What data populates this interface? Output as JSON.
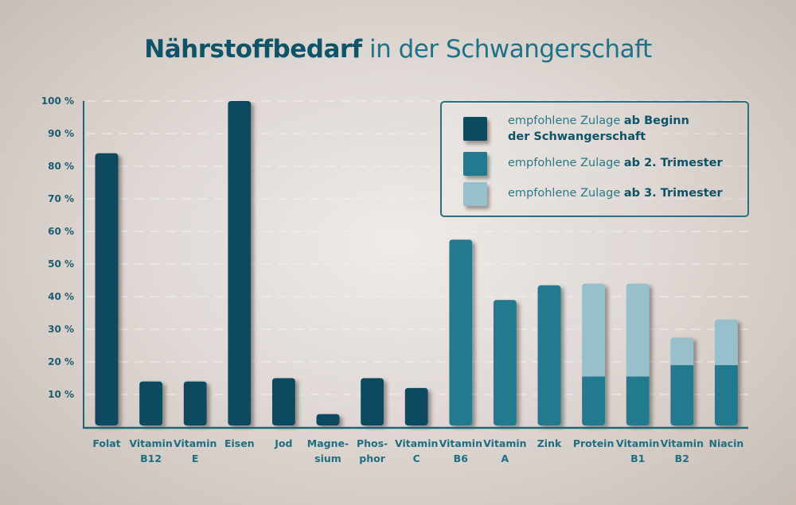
{
  "title": {
    "bold": "Nährstoffbedarf",
    "regular": " in der Schwangerschaft"
  },
  "colors": {
    "beginn": "#0b4a5f",
    "trimester2": "#227a8e",
    "trimester3": "#98bfcc",
    "axis": "#1f6675",
    "grid": "#f3efec"
  },
  "legend": [
    {
      "regular": "empfohlene Zulage ",
      "bold": "ab Beginn",
      "bold2": "der Schwangerschaft",
      "color_key": "beginn"
    },
    {
      "regular": "empfohlene Zulage ",
      "bold": "ab 2. Trimester",
      "bold2": "",
      "color_key": "trimester2"
    },
    {
      "regular": "empfohlene Zulage ",
      "bold": "ab 3. Trimester",
      "bold2": "",
      "color_key": "trimester3"
    }
  ],
  "chart_data": {
    "type": "bar",
    "stacked": true,
    "title": "Nährstoffbedarf in der Schwangerschaft",
    "xlabel": "",
    "ylabel": "",
    "ylim": [
      0,
      100
    ],
    "yticks": [
      10,
      20,
      30,
      40,
      50,
      60,
      70,
      80,
      90,
      100
    ],
    "ytick_labels": [
      "10 %",
      "20 %",
      "30 %",
      "40 %",
      "50 %",
      "60 %",
      "70 %",
      "80 %",
      "90 %",
      "100 %"
    ],
    "grid": true,
    "legend_position": "top-right",
    "categories": [
      [
        "Folat"
      ],
      [
        "Vitamin",
        "B12"
      ],
      [
        "Vitamin",
        "E"
      ],
      [
        "Eisen"
      ],
      [
        "Jod"
      ],
      [
        "Magne-",
        "sium"
      ],
      [
        "Phos-",
        "phor"
      ],
      [
        "Vitamin",
        "C"
      ],
      [
        "Vitamin",
        "B6"
      ],
      [
        "Vitamin",
        "A"
      ],
      [
        "Zink"
      ],
      [
        "Protein"
      ],
      [
        "Vitamin",
        "B1"
      ],
      [
        "Vitamin",
        "B2"
      ],
      [
        "Niacin"
      ]
    ],
    "series": [
      {
        "name": "empfohlene Zulage ab Beginn der Schwangerschaft",
        "color_key": "beginn",
        "values": [
          84,
          14,
          14,
          100,
          15,
          4,
          15,
          12,
          0,
          0,
          0,
          0,
          0,
          0,
          0
        ]
      },
      {
        "name": "empfohlene Zulage ab 2. Trimester",
        "color_key": "trimester2",
        "values": [
          0,
          0,
          0,
          0,
          0,
          0,
          0,
          0,
          57.5,
          39,
          43.5,
          15.5,
          15.5,
          19,
          19
        ]
      },
      {
        "name": "empfohlene Zulage ab 3. Trimester",
        "color_key": "trimester3",
        "values": [
          0,
          0,
          0,
          0,
          0,
          0,
          0,
          0,
          0,
          0,
          0,
          28.5,
          28.5,
          8.5,
          14
        ]
      }
    ]
  }
}
